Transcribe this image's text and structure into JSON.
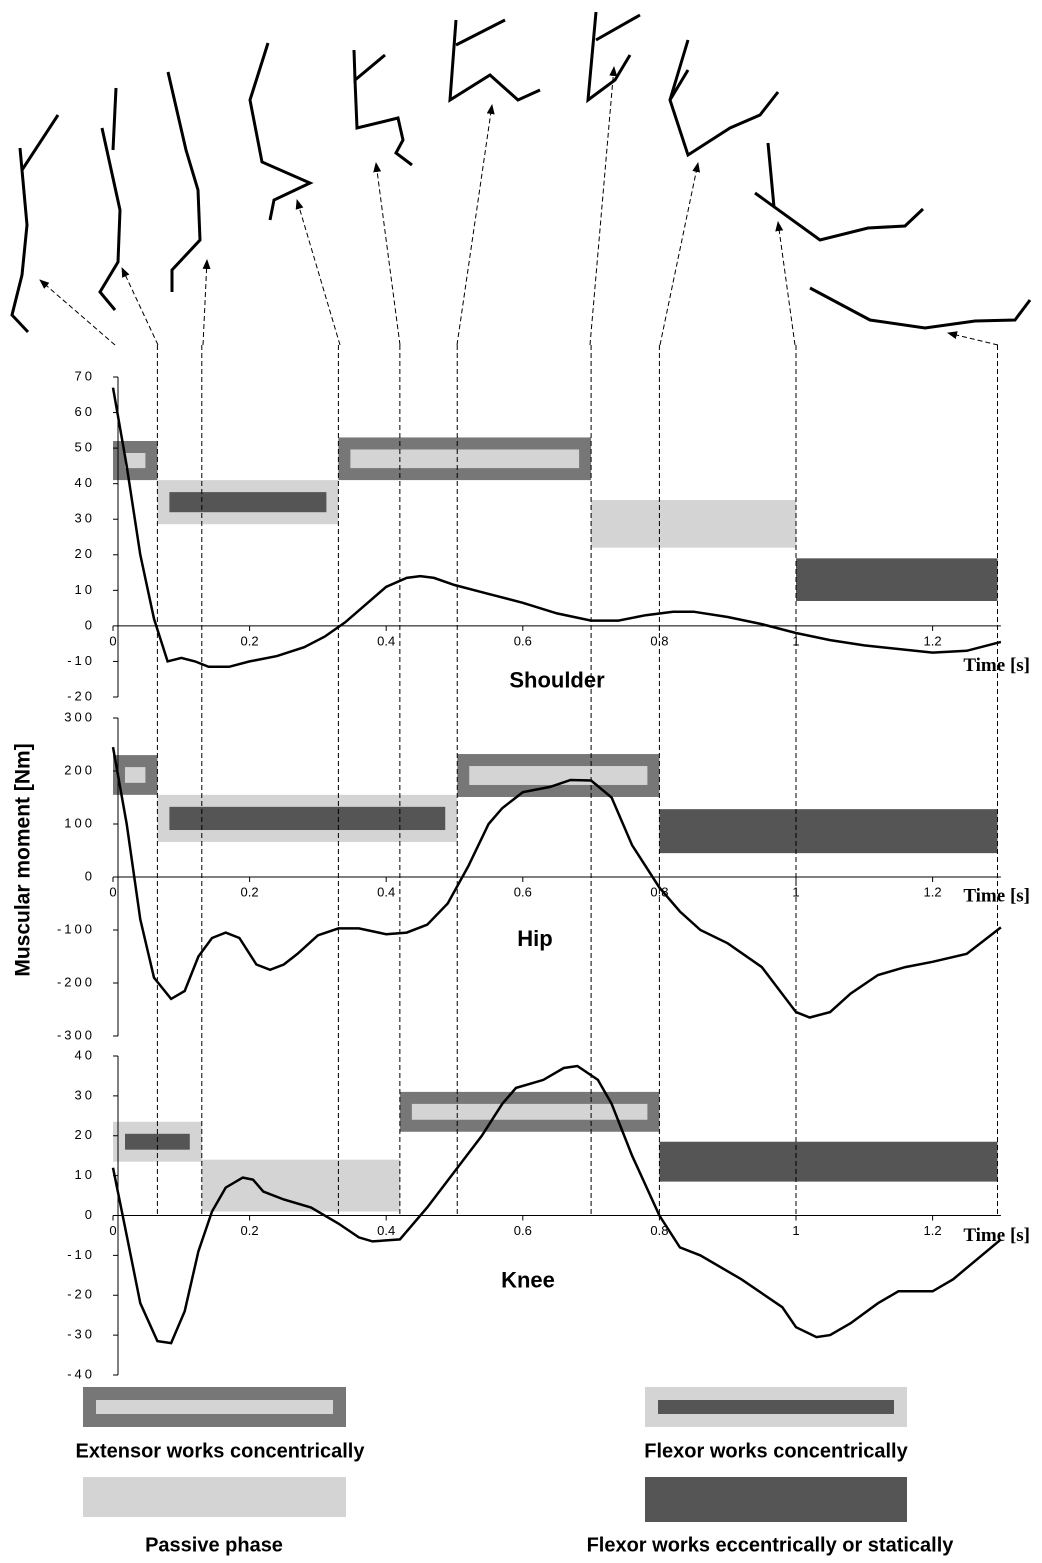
{
  "y_label": "Muscular moment [Nm]",
  "legend": [
    {
      "label": "Extensor works concentrically",
      "color": "#777777",
      "inner_color": "#d4d4d4"
    },
    {
      "label": "Flexor works concentrically",
      "color": "#d4d4d4",
      "inner_color": "#555555"
    },
    {
      "label": "Passive phase",
      "color": "#d4d4d4"
    },
    {
      "label": "Flexor works eccentrically or statically",
      "color": "#555555"
    }
  ],
  "chart_data": [
    {
      "type": "line",
      "title": "Shoulder",
      "x_label": "Time [s]",
      "color": "#000000",
      "x": [
        0,
        0.02,
        0.04,
        0.06,
        0.08,
        0.1,
        0.12,
        0.14,
        0.17,
        0.2,
        0.24,
        0.28,
        0.31,
        0.34,
        0.37,
        0.4,
        0.43,
        0.45,
        0.47,
        0.5,
        0.55,
        0.6,
        0.65,
        0.7,
        0.74,
        0.78,
        0.82,
        0.85,
        0.9,
        0.95,
        1.0,
        1.05,
        1.1,
        1.15,
        1.2,
        1.25,
        1.3
      ],
      "values": [
        67,
        45,
        20,
        2,
        -10,
        -9,
        -10,
        -11.5,
        -11.5,
        -10,
        -8.5,
        -6,
        -3,
        1,
        6,
        11,
        13.5,
        14,
        13.5,
        11.5,
        9,
        6.5,
        3.5,
        1.5,
        1.5,
        3,
        4,
        4,
        2.5,
        0.5,
        -2,
        -4,
        -5.5,
        -6.5,
        -7.5,
        -7,
        -4.5
      ],
      "xlim": [
        0,
        1.3
      ],
      "xticks": [
        0,
        0.2,
        0.4,
        0.6,
        0.8,
        1,
        1.2
      ],
      "ylim": [
        -20,
        70
      ],
      "yticks": [
        -20,
        -10,
        0,
        10,
        20,
        30,
        40,
        50,
        60,
        70
      ],
      "phases": [
        {
          "x": [
            0,
            0.065
          ],
          "y": [
            41,
            52
          ],
          "kind": 0
        },
        {
          "x": [
            0.065,
            0.33
          ],
          "y": [
            28.6,
            41
          ],
          "kind": 1
        },
        {
          "x": [
            0.33,
            0.7
          ],
          "y": [
            41,
            53
          ],
          "kind": 0
        },
        {
          "x": [
            0.7,
            1.0
          ],
          "y": [
            22,
            35.4
          ],
          "kind": 2
        },
        {
          "x": [
            1.0,
            1.295
          ],
          "y": [
            7,
            19
          ],
          "kind": 3
        }
      ]
    },
    {
      "type": "line",
      "title": "Hip",
      "x_label": "Time [s]",
      "color": "#000000",
      "x": [
        0,
        0.02,
        0.04,
        0.06,
        0.085,
        0.105,
        0.125,
        0.145,
        0.165,
        0.185,
        0.21,
        0.23,
        0.25,
        0.27,
        0.3,
        0.33,
        0.36,
        0.4,
        0.43,
        0.46,
        0.49,
        0.52,
        0.55,
        0.57,
        0.6,
        0.64,
        0.67,
        0.7,
        0.73,
        0.76,
        0.8,
        0.83,
        0.86,
        0.9,
        0.95,
        1.0,
        1.02,
        1.05,
        1.08,
        1.12,
        1.16,
        1.2,
        1.25,
        1.3
      ],
      "values": [
        245,
        100,
        -80,
        -190,
        -230,
        -215,
        -150,
        -115,
        -105,
        -115,
        -165,
        -175,
        -165,
        -145,
        -110,
        -97,
        -97,
        -108,
        -105,
        -90,
        -50,
        20,
        100,
        130,
        160,
        170,
        183,
        182,
        150,
        60,
        -20,
        -65,
        -100,
        -125,
        -170,
        -255,
        -265,
        -255,
        -220,
        -185,
        -170,
        -160,
        -145,
        -95
      ],
      "xlim": [
        0,
        1.3
      ],
      "xticks": [
        0,
        0.2,
        0.4,
        0.6,
        0.8,
        1,
        1.2
      ],
      "ylim": [
        -300,
        300
      ],
      "yticks": [
        -300,
        -200,
        -100,
        0,
        100,
        200,
        300
      ],
      "phases": [
        {
          "x": [
            0,
            0.065
          ],
          "y": [
            155,
            230
          ],
          "kind": 0
        },
        {
          "x": [
            0.065,
            0.504
          ],
          "y": [
            66,
            155
          ],
          "kind": 1
        },
        {
          "x": [
            0.504,
            0.8
          ],
          "y": [
            151,
            232
          ],
          "kind": 0
        },
        {
          "x": [
            0.8,
            1.295
          ],
          "y": [
            45,
            128
          ],
          "kind": 3
        }
      ]
    },
    {
      "type": "line",
      "title": "Knee",
      "x_label": "Time [s]",
      "color": "#000000",
      "x": [
        0,
        0.02,
        0.04,
        0.065,
        0.085,
        0.105,
        0.125,
        0.145,
        0.165,
        0.19,
        0.205,
        0.22,
        0.25,
        0.29,
        0.33,
        0.36,
        0.38,
        0.42,
        0.46,
        0.5,
        0.54,
        0.57,
        0.59,
        0.61,
        0.63,
        0.66,
        0.68,
        0.71,
        0.73,
        0.76,
        0.8,
        0.83,
        0.86,
        0.92,
        0.98,
        1.0,
        1.03,
        1.05,
        1.08,
        1.12,
        1.15,
        1.2,
        1.23,
        1.3
      ],
      "values": [
        12,
        -5,
        -22,
        -31.5,
        -32,
        -24,
        -9,
        1,
        7,
        9.5,
        9,
        6,
        4,
        2,
        -2,
        -5.5,
        -6.5,
        -6,
        2,
        11,
        20,
        28,
        32,
        33,
        34,
        37,
        37.5,
        34,
        28,
        15,
        0,
        -8,
        -10,
        -16,
        -23,
        -28,
        -30.5,
        -30,
        -27,
        -22,
        -19,
        -19,
        -16,
        -6
      ],
      "xlim": [
        0,
        1.3
      ],
      "xticks": [
        0,
        0.2,
        0.4,
        0.6,
        0.8,
        1,
        1.2
      ],
      "ylim": [
        -40,
        40
      ],
      "yticks": [
        -40,
        -30,
        -20,
        -10,
        0,
        10,
        20,
        30,
        40
      ],
      "phases": [
        {
          "x": [
            0,
            0.13
          ],
          "y": [
            13.5,
            23.5
          ],
          "kind": 1
        },
        {
          "x": [
            0.13,
            0.42
          ],
          "y": [
            1,
            14
          ],
          "kind": 2
        },
        {
          "x": [
            0.42,
            0.8
          ],
          "y": [
            21,
            31
          ],
          "kind": 0
        },
        {
          "x": [
            0.8,
            1.295
          ],
          "y": [
            8.5,
            18.5
          ],
          "kind": 3
        }
      ]
    }
  ]
}
